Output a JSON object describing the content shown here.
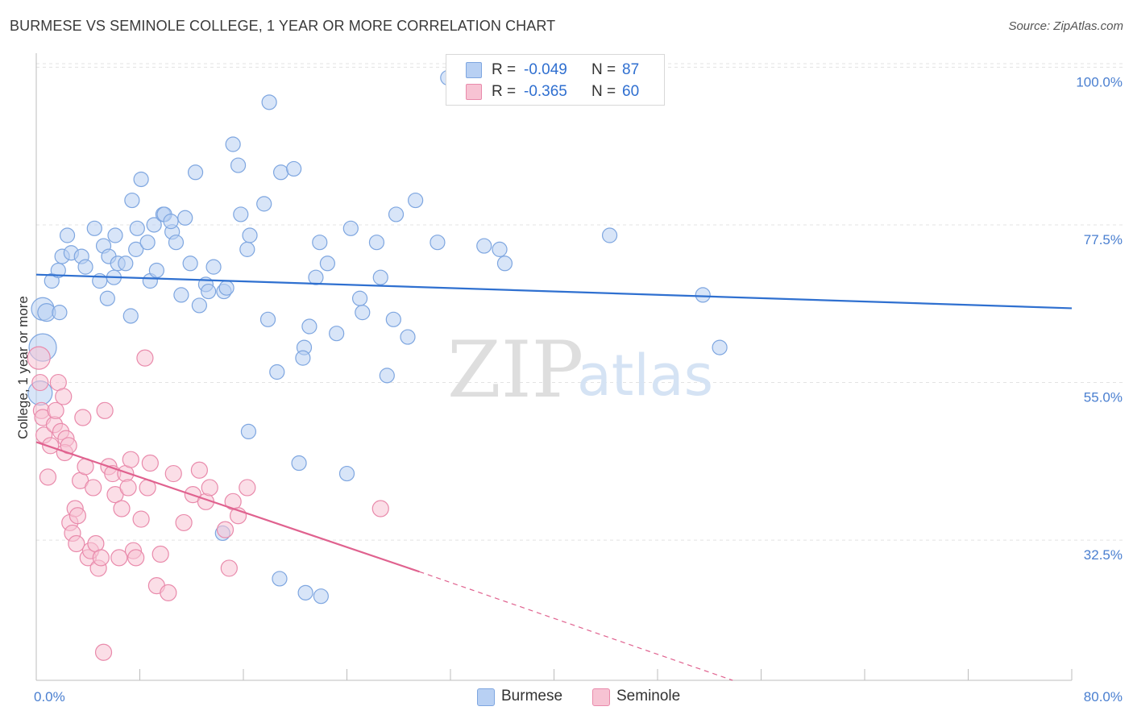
{
  "title": "BURMESE VS SEMINOLE COLLEGE, 1 YEAR OR MORE CORRELATION CHART",
  "source": "Source: ZipAtlas.com",
  "watermark": {
    "zip": "ZIP",
    "atlas": "atlas"
  },
  "colors": {
    "burmese_fill": "#b8d0f3",
    "burmese_stroke": "#7ea6e0",
    "burmese_line": "#2f70d0",
    "seminole_fill": "#f7c3d3",
    "seminole_stroke": "#e98aab",
    "seminole_line": "#e0628f",
    "tick_label": "#4a7fd0",
    "grid": "#e3e3e3"
  },
  "legend_top": [
    {
      "r_label": "R =",
      "r_value": "-0.049",
      "n_label": "N =",
      "n_value": "87"
    },
    {
      "r_label": "R =",
      "r_value": "-0.365",
      "n_label": "N =",
      "n_value": "60"
    }
  ],
  "chart_data": {
    "type": "scatter",
    "ylabel": "College, 1 year or more",
    "xlim": [
      0,
      80
    ],
    "ylim": [
      12.5,
      102
    ],
    "x_tick_labels": [
      "0.0%",
      "80.0%"
    ],
    "y_ticks": [
      32.5,
      55.0,
      77.5,
      100.0
    ],
    "y_tick_labels": [
      "32.5%",
      "55.0%",
      "77.5%",
      "100.0%"
    ],
    "legend_placement": "top-center and bottom",
    "series": [
      {
        "name": "Burmese",
        "trend": {
          "x": [
            0,
            80
          ],
          "y": [
            70.4,
            65.6
          ]
        },
        "points": [
          [
            0.5,
            60,
            17
          ],
          [
            0.5,
            65.5,
            14
          ],
          [
            0.3,
            53.5,
            15
          ],
          [
            0.8,
            65,
            11
          ],
          [
            1.2,
            69.5,
            9
          ],
          [
            1.8,
            65,
            9
          ],
          [
            1.7,
            71,
            9
          ],
          [
            2.0,
            73,
            9
          ],
          [
            2.7,
            73.5,
            9
          ],
          [
            2.4,
            76,
            9
          ],
          [
            3.5,
            73,
            9
          ],
          [
            3.8,
            71.5,
            9
          ],
          [
            4.5,
            77,
            9
          ],
          [
            4.9,
            69.5,
            9
          ],
          [
            5.2,
            74.5,
            9
          ],
          [
            5.5,
            67,
            9
          ],
          [
            5.6,
            73,
            9
          ],
          [
            6.1,
            76,
            9
          ],
          [
            6.3,
            72,
            9
          ],
          [
            6.0,
            70,
            9
          ],
          [
            6.9,
            72,
            9
          ],
          [
            7.3,
            64.5,
            9
          ],
          [
            7.7,
            74,
            9
          ],
          [
            7.4,
            81,
            9
          ],
          [
            7.8,
            77,
            9
          ],
          [
            8.1,
            84,
            9
          ],
          [
            8.6,
            75,
            9
          ],
          [
            8.8,
            69.5,
            9
          ],
          [
            9.1,
            77.5,
            9
          ],
          [
            9.3,
            71,
            9
          ],
          [
            9.8,
            79,
            9
          ],
          [
            9.9,
            79,
            9
          ],
          [
            10.5,
            76.5,
            9
          ],
          [
            10.4,
            78,
            9
          ],
          [
            10.8,
            75,
            9
          ],
          [
            11.2,
            67.5,
            9
          ],
          [
            11.5,
            78.5,
            9
          ],
          [
            11.9,
            72,
            9
          ],
          [
            12.3,
            85,
            9
          ],
          [
            12.6,
            66,
            9
          ],
          [
            13.1,
            69,
            9
          ],
          [
            13.3,
            68,
            9
          ],
          [
            13.7,
            71.5,
            9
          ],
          [
            14.5,
            68,
            9
          ],
          [
            14.7,
            68.5,
            9
          ],
          [
            15.2,
            89,
            9
          ],
          [
            15.6,
            86,
            9
          ],
          [
            15.8,
            79,
            9
          ],
          [
            16.3,
            74,
            9
          ],
          [
            16.5,
            76,
            9
          ],
          [
            17.6,
            80.5,
            9
          ],
          [
            17.9,
            64,
            9
          ],
          [
            18.0,
            95,
            9
          ],
          [
            18.9,
            85,
            9
          ],
          [
            18.6,
            56.5,
            9
          ],
          [
            19.9,
            85.5,
            9
          ],
          [
            20.7,
            60,
            9
          ],
          [
            20.6,
            58.5,
            9
          ],
          [
            21.6,
            70,
            9
          ],
          [
            21.1,
            63,
            9
          ],
          [
            21.9,
            75,
            9
          ],
          [
            22.5,
            72,
            9
          ],
          [
            23.2,
            62,
            9
          ],
          [
            24.3,
            77,
            9
          ],
          [
            25.2,
            65,
            9
          ],
          [
            25.0,
            67,
            9
          ],
          [
            26.3,
            75,
            9
          ],
          [
            26.6,
            70,
            9
          ],
          [
            27.1,
            56,
            9
          ],
          [
            27.8,
            79,
            9
          ],
          [
            27.6,
            64,
            9
          ],
          [
            28.7,
            61.5,
            9
          ],
          [
            29.3,
            81,
            9
          ],
          [
            31.0,
            75,
            9
          ],
          [
            31.8,
            98.5,
            9
          ],
          [
            34.6,
            74.5,
            9
          ],
          [
            36.2,
            72,
            9
          ],
          [
            44.3,
            76,
            9
          ],
          [
            51.5,
            67.5,
            9
          ],
          [
            52.8,
            60,
            9
          ],
          [
            35.8,
            74,
            9
          ],
          [
            14.4,
            33.5,
            9
          ],
          [
            18.8,
            27,
            9
          ],
          [
            20.8,
            25,
            9
          ],
          [
            22.0,
            24.5,
            9
          ],
          [
            16.4,
            48,
            9
          ],
          [
            20.3,
            43.5,
            9
          ],
          [
            24.0,
            42,
            9
          ]
        ]
      },
      {
        "name": "Seminole",
        "trend": {
          "x": [
            0,
            29.6
          ],
          "y": [
            46.5,
            28.0
          ],
          "dash_to": {
            "x": 53.8,
            "y": 12.5
          }
        },
        "points": [
          [
            0.2,
            58.5,
            14
          ],
          [
            0.3,
            55,
            10
          ],
          [
            0.4,
            51,
            10
          ],
          [
            0.5,
            50,
            10
          ],
          [
            0.6,
            47.5,
            10
          ],
          [
            0.9,
            41.5,
            10
          ],
          [
            1.1,
            46,
            10
          ],
          [
            1.4,
            49,
            10
          ],
          [
            1.5,
            51,
            10
          ],
          [
            1.7,
            55,
            10
          ],
          [
            1.9,
            48,
            10
          ],
          [
            2.1,
            53,
            10
          ],
          [
            2.3,
            47,
            10
          ],
          [
            2.2,
            45,
            10
          ],
          [
            2.5,
            46,
            10
          ],
          [
            2.6,
            35,
            10
          ],
          [
            2.8,
            33.5,
            10
          ],
          [
            3.0,
            37,
            10
          ],
          [
            3.1,
            32,
            10
          ],
          [
            3.2,
            36,
            10
          ],
          [
            3.4,
            41,
            10
          ],
          [
            3.6,
            50,
            10
          ],
          [
            3.8,
            43,
            10
          ],
          [
            4.0,
            30,
            10
          ],
          [
            4.2,
            31,
            10
          ],
          [
            4.4,
            40,
            10
          ],
          [
            4.6,
            32,
            10
          ],
          [
            4.8,
            28.5,
            10
          ],
          [
            5.0,
            30,
            10
          ],
          [
            5.3,
            51,
            10
          ],
          [
            5.6,
            43,
            10
          ],
          [
            5.9,
            42,
            10
          ],
          [
            6.1,
            39,
            10
          ],
          [
            6.4,
            30,
            10
          ],
          [
            6.6,
            37,
            10
          ],
          [
            6.9,
            42,
            10
          ],
          [
            7.1,
            40,
            10
          ],
          [
            7.3,
            44,
            10
          ],
          [
            7.5,
            31,
            10
          ],
          [
            7.7,
            30,
            10
          ],
          [
            8.1,
            35.5,
            10
          ],
          [
            8.4,
            58.5,
            10
          ],
          [
            8.6,
            40,
            10
          ],
          [
            8.8,
            43.5,
            10
          ],
          [
            9.3,
            26,
            10
          ],
          [
            9.6,
            30.5,
            10
          ],
          [
            10.2,
            25,
            10
          ],
          [
            10.6,
            42,
            10
          ],
          [
            11.4,
            35,
            10
          ],
          [
            12.1,
            39,
            10
          ],
          [
            12.6,
            42.5,
            10
          ],
          [
            13.1,
            38,
            10
          ],
          [
            13.4,
            40,
            10
          ],
          [
            14.6,
            34,
            10
          ],
          [
            14.9,
            28.5,
            10
          ],
          [
            15.2,
            38,
            10
          ],
          [
            15.6,
            36,
            10
          ],
          [
            16.3,
            40,
            10
          ],
          [
            26.6,
            37,
            10
          ],
          [
            5.2,
            16.5,
            10
          ]
        ]
      }
    ]
  }
}
